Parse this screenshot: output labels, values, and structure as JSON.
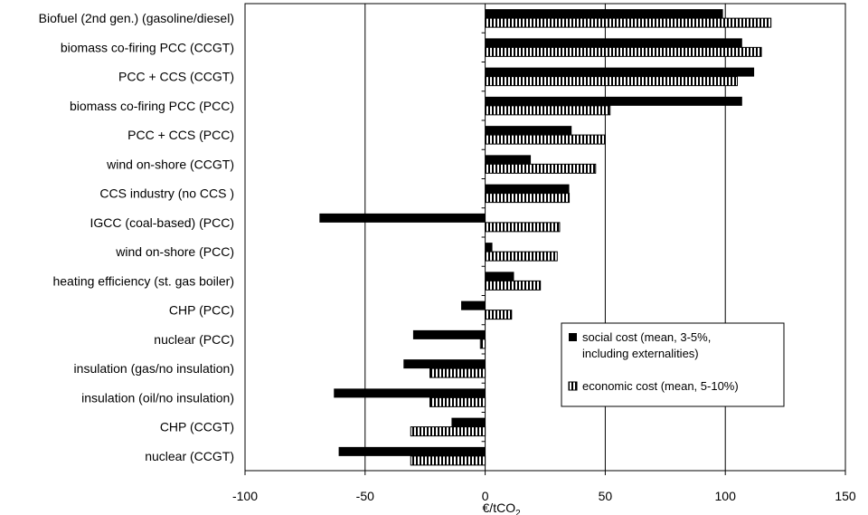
{
  "chart_data": {
    "type": "bar",
    "orientation": "horizontal",
    "categories": [
      "Biofuel (2nd gen.) (gasoline/diesel)",
      "biomass co-firing PCC (CCGT)",
      "PCC + CCS (CCGT)",
      "biomass co-firing PCC (PCC)",
      "PCC + CCS (PCC)",
      "wind on-shore (CCGT)",
      "CCS industry (no CCS )",
      "IGCC (coal-based) (PCC)",
      "wind on-shore (PCC)",
      "heating efficiency (st. gas boiler)",
      "CHP (PCC)",
      "nuclear (PCC)",
      "insulation (gas/no insulation)",
      "insulation (oil/no insulation)",
      "CHP (CCGT)",
      "nuclear (CCGT)"
    ],
    "series": [
      {
        "name": "social cost (mean, 3-5%, including externalities)",
        "values": [
          99,
          107,
          112,
          107,
          36,
          19,
          35,
          -69,
          3,
          12,
          -10,
          -30,
          -34,
          -63,
          -14,
          -61
        ]
      },
      {
        "name": "economic cost (mean, 5-10%)",
        "values": [
          119,
          115,
          105,
          52,
          50,
          46,
          35,
          31,
          30,
          23,
          11,
          -2,
          -23,
          -23,
          -31,
          -31
        ]
      }
    ],
    "xlabel_base": "€/tCO",
    "xlabel_sub": "2",
    "xlim": [
      -100,
      150
    ],
    "xticks": [
      "-100",
      "-50",
      "0",
      "50",
      "100",
      "150"
    ],
    "xtick_values": [
      -100,
      -50,
      0,
      50,
      100,
      150
    ],
    "grid": "vertical",
    "legend_position": "right"
  }
}
